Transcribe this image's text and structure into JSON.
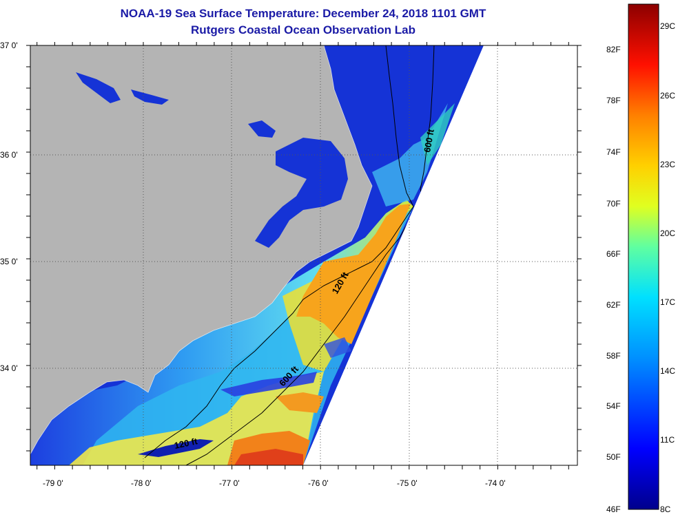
{
  "header": {
    "title": "NOAA-19 Sea Surface Temperature:  December 24, 2018 1101 GMT",
    "subtitle": "Rutgers Coastal Ocean Observation Lab"
  },
  "axes": {
    "lat_labels": [
      "37 0'",
      "36 0'",
      "35 0'",
      "34 0'"
    ],
    "lon_labels": [
      "-79 0'",
      "-78 0'",
      "-77 0'",
      "-76 0'",
      "-75 0'",
      "-74 0'"
    ]
  },
  "contours": [
    "600 ft",
    "120 ft",
    "600 ft",
    "120 ft"
  ],
  "colorbar": {
    "fahrenheit": [
      "82F",
      "78F",
      "74F",
      "70F",
      "66F",
      "62F",
      "58F",
      "54F",
      "50F",
      "46F"
    ],
    "celsius": [
      "29C",
      "26C",
      "23C",
      "20C",
      "17C",
      "14C",
      "11C",
      "8C"
    ]
  },
  "colors": {
    "land": "#b4b4b4",
    "title": "#1a1aa6",
    "cold": "#00008c",
    "warm": "#8c0000"
  }
}
